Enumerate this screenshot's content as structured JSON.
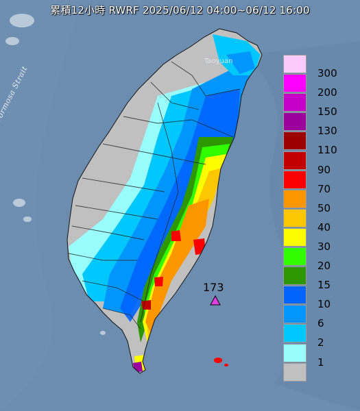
{
  "title": "累積12小時 RWRF 2025/06/12 04:00~06/12 16:00",
  "labels": {
    "strait": "Formosa Strait",
    "city": "Taoyuan"
  },
  "marker": {
    "value": "173",
    "color": "#e040e0"
  },
  "legend": [
    {
      "label": "300",
      "color": "#fdcafd"
    },
    {
      "label": "200",
      "color": "#fd00fd"
    },
    {
      "label": "150",
      "color": "#c700c7"
    },
    {
      "label": "130",
      "color": "#9c009c"
    },
    {
      "label": "110",
      "color": "#9c0000"
    },
    {
      "label": "90",
      "color": "#c30000"
    },
    {
      "label": "70",
      "color": "#fb0000"
    },
    {
      "label": "50",
      "color": "#fd9600"
    },
    {
      "label": "40",
      "color": "#fdc700"
    },
    {
      "label": "30",
      "color": "#fdfd00"
    },
    {
      "label": "20",
      "color": "#32fd00"
    },
    {
      "label": "15",
      "color": "#2d9600"
    },
    {
      "label": "10",
      "color": "#0064fd"
    },
    {
      "label": "6",
      "color": "#0096fd"
    },
    {
      "label": "2",
      "color": "#00c7fd"
    },
    {
      "label": "1",
      "color": "#99fdfd"
    },
    {
      "label": "",
      "color": "#c0c0c0"
    }
  ]
}
